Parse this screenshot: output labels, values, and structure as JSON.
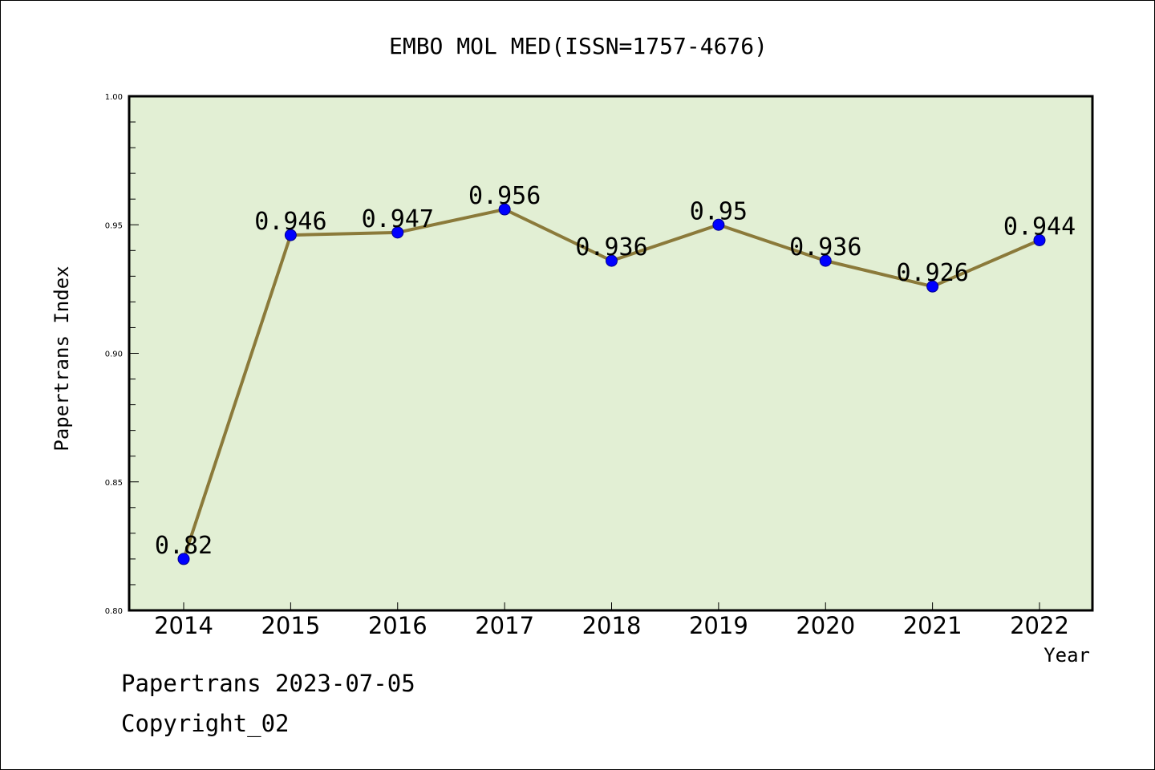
{
  "chart_data": {
    "type": "line",
    "title": "EMBO MOL MED(ISSN=1757-4676)",
    "xlabel": "Year",
    "ylabel": "Papertrans Index",
    "categories": [
      "2014",
      "2015",
      "2016",
      "2017",
      "2018",
      "2019",
      "2020",
      "2021",
      "2022"
    ],
    "series": [
      {
        "values": [
          0.82,
          0.946,
          0.947,
          0.956,
          0.936,
          0.95,
          0.936,
          0.926,
          0.944
        ],
        "labels": [
          "0.82",
          "0.946",
          "0.947",
          "0.956",
          "0.936",
          "0.95",
          "0.936",
          "0.926",
          "0.944"
        ]
      }
    ],
    "ylim": [
      0.8,
      1.0
    ],
    "yticks": [
      "0.80",
      "0.85",
      "0.90",
      "0.95",
      "1.00"
    ],
    "grid": false,
    "legend": "none",
    "colors": {
      "plot_background": "#e2efd4",
      "line": "#8b7a3a",
      "marker": "#0000ff"
    }
  },
  "footer": {
    "source_line": "Papertrans 2023-07-05",
    "copyright": "Copyright_02"
  }
}
